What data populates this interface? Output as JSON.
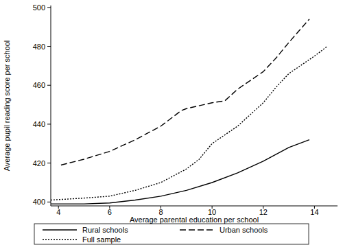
{
  "chart_data": {
    "type": "line",
    "x_label": "Average parental education per school",
    "y_label": "Average pupil reading score per school",
    "xlim": [
      3.7,
      14.9
    ],
    "xticks": [
      4,
      6,
      8,
      10,
      12,
      14
    ],
    "ylim": [
      398,
      501
    ],
    "yticks": [
      400,
      420,
      440,
      460,
      480,
      500
    ],
    "grid": false,
    "legend": "bottom",
    "series": [
      {
        "name": "Rural schools",
        "color": "#000000",
        "line_style": "solid",
        "x": [
          3.7,
          5,
          6,
          7,
          8,
          9,
          10,
          11,
          12,
          13,
          13.8
        ],
        "values": [
          399,
          399,
          399.5,
          401,
          403,
          406,
          410,
          415,
          421,
          428,
          432
        ]
      },
      {
        "name": "Urban schools",
        "color": "#000000",
        "line_style": "dashed",
        "x": [
          4.1,
          5,
          6,
          7,
          8,
          8.8,
          9,
          10,
          10.5,
          11,
          12,
          12.5,
          13,
          13.8
        ],
        "values": [
          419,
          422,
          426,
          432,
          439,
          447,
          448,
          451,
          452,
          458,
          467,
          474,
          482,
          494
        ]
      },
      {
        "name": "Full sample",
        "color": "#000000",
        "line_style": "dotted",
        "x": [
          3.7,
          5,
          6,
          7,
          8,
          9,
          9.5,
          10,
          11,
          12,
          12.5,
          13,
          14,
          14.5
        ],
        "values": [
          401,
          402,
          403,
          406,
          410,
          417,
          422,
          430,
          439,
          451,
          459,
          466,
          475,
          480
        ]
      }
    ]
  }
}
